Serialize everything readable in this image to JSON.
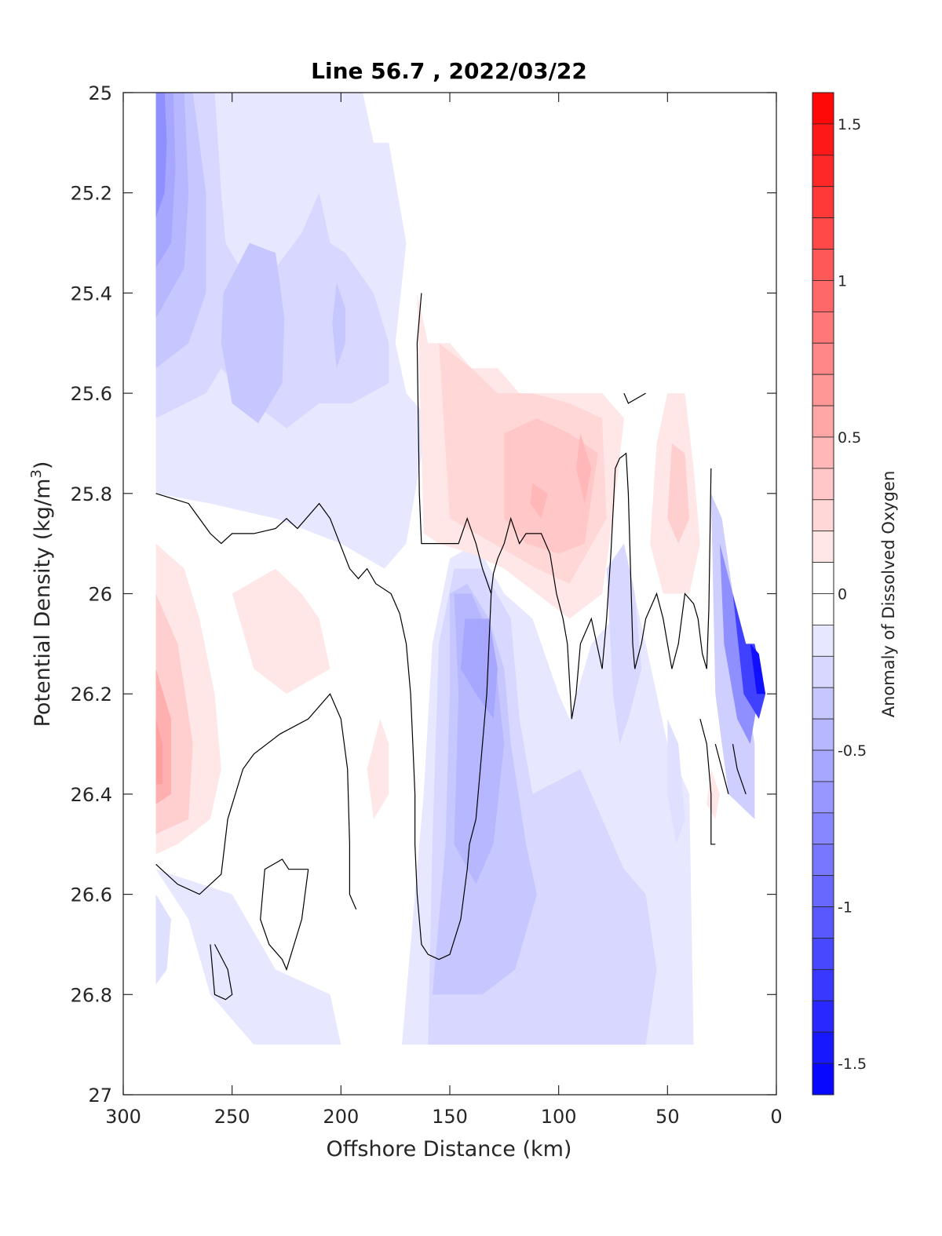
{
  "chart_data": {
    "type": "heatmap",
    "subtype": "filled-contour",
    "title": "Line 56.7 , 2022/03/22",
    "xlabel": "Offshore Distance (km)",
    "ylabel": "Potential Density (kg/m",
    "ylabel_sup": "3",
    "ylabel_close": ")",
    "xlim": [
      300,
      0
    ],
    "x_reversed": true,
    "ylim": [
      25,
      27
    ],
    "y_reversed": true,
    "xticks": [
      300,
      250,
      200,
      150,
      100,
      50,
      0
    ],
    "xtick_labels": [
      "300",
      "250",
      "200",
      "150",
      "100",
      "50",
      "0"
    ],
    "yticks": [
      25,
      25.2,
      25.4,
      25.6,
      25.8,
      26,
      26.2,
      26.4,
      26.6,
      26.8,
      27
    ],
    "ytick_labels": [
      "25",
      "25.2",
      "25.4",
      "25.6",
      "25.8",
      "26",
      "26.2",
      "26.4",
      "26.6",
      "26.8",
      "27"
    ],
    "grid": false,
    "data_extent": {
      "x": [
        285,
        5
      ],
      "y": [
        25,
        26.9
      ]
    },
    "colorbar": {
      "label": "Anomaly of Dissolved Oxygen",
      "range": [
        -1.6,
        1.6
      ],
      "step": 0.1,
      "ticks": [
        1.5,
        1,
        0.5,
        0,
        -0.5,
        -1,
        -1.5
      ],
      "tick_labels": [
        "1.5",
        "1",
        "0.5",
        "0",
        "-0.5",
        "-1",
        "-1.5"
      ],
      "colormap": "blue-white-red",
      "low_color": "#0000ff",
      "mid_color": "#ffffff",
      "high_color": "#ff0000",
      "location": "right"
    },
    "zero_contour_color": "#000000",
    "features": [
      {
        "name": "offshore-upper-low",
        "x": [
          285,
          250
        ],
        "y": [
          25.0,
          25.6
        ],
        "anomaly": -0.8
      },
      {
        "name": "upper-mid-low",
        "x": [
          255,
          185
        ],
        "y": [
          25.2,
          25.9
        ],
        "anomaly": -0.3
      },
      {
        "name": "offshore-mid-high",
        "x": [
          285,
          240
        ],
        "y": [
          25.9,
          26.55
        ],
        "anomaly": 0.6
      },
      {
        "name": "mid-high-band",
        "x": [
          165,
          75
        ],
        "y": [
          25.5,
          26.05
        ],
        "anomaly": 0.4
      },
      {
        "name": "nearshore-high",
        "x": [
          55,
          35
        ],
        "y": [
          25.6,
          26.05
        ],
        "anomaly": 0.3
      },
      {
        "name": "subsurface-low-core",
        "x": [
          165,
          110
        ],
        "y": [
          25.9,
          26.9
        ],
        "anomaly": -0.55
      },
      {
        "name": "coastal-low-wedge",
        "x": [
          30,
          5
        ],
        "y": [
          25.8,
          26.4
        ],
        "anomaly": -1.3
      },
      {
        "name": "deep-low",
        "x": [
          175,
          40
        ],
        "y": [
          26.5,
          26.9
        ],
        "anomaly": -0.25
      }
    ]
  }
}
